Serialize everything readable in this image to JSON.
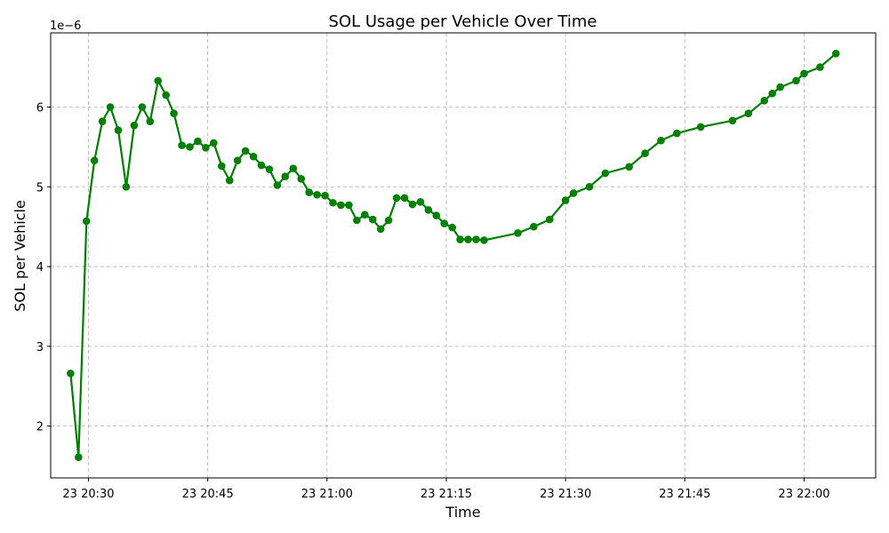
{
  "chart_data": {
    "type": "line",
    "title": "SOL Usage per Vehicle Over Time",
    "xlabel": "Time",
    "ylabel": "SOL per Vehicle",
    "y_offset_label": "1e−6",
    "y_scale": 1e-06,
    "x_ticks": [
      "23 20:30",
      "23 20:45",
      "23 21:00",
      "23 21:15",
      "23 21:30",
      "23 21:45",
      "23 22:00"
    ],
    "y_ticks": [
      2,
      3,
      4,
      5,
      6
    ],
    "xlim": [
      "20:25:15",
      "22:09:00"
    ],
    "ylim": [
      1.35,
      6.93
    ],
    "grid": true,
    "color": "#008000",
    "series": [
      {
        "x": [
          "20:27:45",
          "20:28:45",
          "20:29:45",
          "20:30:45",
          "20:31:45",
          "20:32:45",
          "20:33:45",
          "20:34:45",
          "20:35:45",
          "20:36:45",
          "20:37:45",
          "20:38:45",
          "20:39:45",
          "20:40:45",
          "20:41:45",
          "20:42:45",
          "20:43:45",
          "20:44:45",
          "20:45:45",
          "20:46:45",
          "20:47:45",
          "20:48:45",
          "20:49:45",
          "20:50:45",
          "20:51:45",
          "20:52:45",
          "20:53:45",
          "20:54:45",
          "20:55:45",
          "20:56:45",
          "20:57:45",
          "20:58:45",
          "20:59:45",
          "21:00:45",
          "21:01:45",
          "21:02:45",
          "21:03:45",
          "21:04:45",
          "21:05:45",
          "21:06:45",
          "21:07:45",
          "21:08:45",
          "21:09:45",
          "21:10:45",
          "21:11:45",
          "21:12:45",
          "21:13:45",
          "21:14:45",
          "21:15:45",
          "21:16:45",
          "21:17:45",
          "21:18:45",
          "21:19:45",
          "21:24:00",
          "21:26:00",
          "21:28:00",
          "21:30:00",
          "21:31:00",
          "21:33:00",
          "21:35:00",
          "21:38:00",
          "21:40:00",
          "21:42:00",
          "21:44:00",
          "21:47:00",
          "21:51:00",
          "21:53:00",
          "21:55:00",
          "21:56:00",
          "21:57:00",
          "21:59:00",
          "22:00:00",
          "22:02:00",
          "22:04:00"
        ],
        "values": [
          2.66,
          1.61,
          4.57,
          5.33,
          5.82,
          6.0,
          5.71,
          5.0,
          5.77,
          6.0,
          5.82,
          6.33,
          6.15,
          5.92,
          5.52,
          5.5,
          5.57,
          5.49,
          5.55,
          5.26,
          5.08,
          5.33,
          5.45,
          5.38,
          5.27,
          5.22,
          5.02,
          5.13,
          5.23,
          5.1,
          4.93,
          4.9,
          4.89,
          4.8,
          4.77,
          4.77,
          4.58,
          4.65,
          4.59,
          4.47,
          4.58,
          4.86,
          4.86,
          4.78,
          4.81,
          4.71,
          4.64,
          4.54,
          4.49,
          4.34,
          4.34,
          4.34,
          4.33,
          4.42,
          4.5,
          4.59,
          4.83,
          4.92,
          5.0,
          5.17,
          5.25,
          5.42,
          5.58,
          5.67,
          5.75,
          5.83,
          5.92,
          6.08,
          6.17,
          6.25,
          6.33,
          6.42,
          6.5,
          6.67
        ]
      }
    ]
  }
}
